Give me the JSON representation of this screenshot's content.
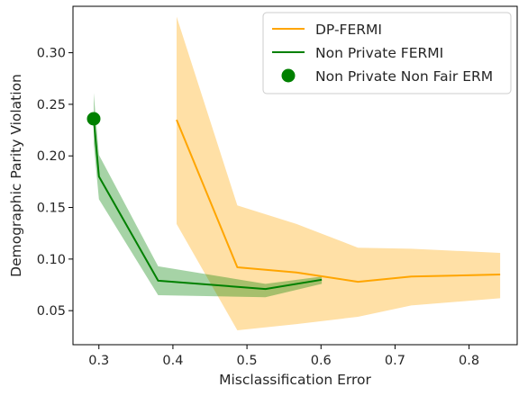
{
  "chart_data": {
    "type": "line",
    "xlabel": "Misclassification Error",
    "ylabel": "Demographic Parity Violation",
    "xlim": [
      0.265,
      0.865
    ],
    "ylim": [
      0.017,
      0.345
    ],
    "xticks": [
      0.3,
      0.4,
      0.5,
      0.6,
      0.7,
      0.8
    ],
    "xtick_labels": [
      "0.3",
      "0.4",
      "0.5",
      "0.6",
      "0.7",
      "0.8"
    ],
    "yticks": [
      0.05,
      0.1,
      0.15,
      0.2,
      0.25,
      0.3
    ],
    "ytick_labels": [
      "0.05",
      "0.10",
      "0.15",
      "0.20",
      "0.25",
      "0.30"
    ],
    "grid": false,
    "legend_position": "top-right",
    "series": [
      {
        "name": "DP-FERMI",
        "kind": "line_with_band",
        "color": "#FFA500",
        "x": [
          0.405,
          0.487,
          0.567,
          0.65,
          0.722,
          0.842
        ],
        "y": [
          0.235,
          0.092,
          0.087,
          0.078,
          0.083,
          0.085
        ],
        "y_lower": [
          0.134,
          0.031,
          0.037,
          0.044,
          0.055,
          0.062
        ],
        "y_upper": [
          0.335,
          0.152,
          0.134,
          0.111,
          0.11,
          0.106
        ]
      },
      {
        "name": "Non Private FERMI",
        "kind": "line_with_band",
        "color": "#008000",
        "x": [
          0.293,
          0.3,
          0.38,
          0.525,
          0.601
        ],
        "y": [
          0.236,
          0.18,
          0.079,
          0.071,
          0.08
        ],
        "y_lower": [
          0.212,
          0.158,
          0.065,
          0.063,
          0.076
        ],
        "y_upper": [
          0.261,
          0.201,
          0.093,
          0.076,
          0.083
        ]
      },
      {
        "name": "Non Private Non Fair ERM",
        "kind": "marker",
        "color": "#008000",
        "x": [
          0.293
        ],
        "y": [
          0.236
        ]
      }
    ]
  }
}
